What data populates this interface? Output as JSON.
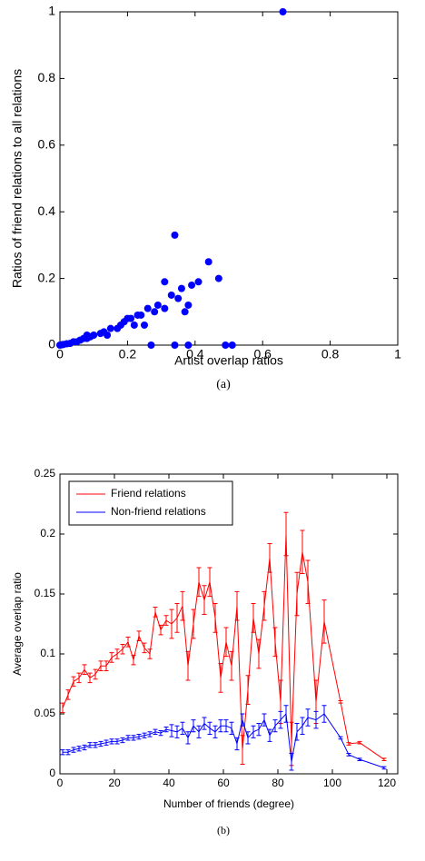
{
  "chart_data": [
    {
      "type": "scatter",
      "xlabel": "Artist overlap ratios",
      "ylabel": "Ratios of friend relations to all relations",
      "caption": "(a)",
      "xlim": [
        0,
        1
      ],
      "ylim": [
        0,
        1
      ],
      "xticks": [
        0,
        0.2,
        0.4,
        0.6,
        0.8,
        1
      ],
      "yticks": [
        0,
        0.2,
        0.4,
        0.6,
        0.8,
        1
      ],
      "color": "#0000ff",
      "x": [
        0.66,
        0.34,
        0.44,
        0.31,
        0.41,
        0.39,
        0.47,
        0.36,
        0.33,
        0.35,
        0.29,
        0.31,
        0.28,
        0.38,
        0.37,
        0.26,
        0.24,
        0.23,
        0.21,
        0.2,
        0.19,
        0.22,
        0.18,
        0.25,
        0.17,
        0.15,
        0.13,
        0.14,
        0.12,
        0.1,
        0.09,
        0.08,
        0.07,
        0.06,
        0.05,
        0.04,
        0.03,
        0.02,
        0.01,
        0.005,
        0,
        0.27,
        0.34,
        0.38,
        0.49,
        0.51,
        0.08
      ],
      "values": [
        1,
        0.33,
        0.25,
        0.19,
        0.19,
        0.18,
        0.2,
        0.17,
        0.15,
        0.14,
        0.12,
        0.11,
        0.1,
        0.12,
        0.1,
        0.11,
        0.09,
        0.09,
        0.08,
        0.08,
        0.07,
        0.06,
        0.06,
        0.06,
        0.05,
        0.05,
        0.04,
        0.03,
        0.035,
        0.03,
        0.025,
        0.02,
        0.02,
        0.015,
        0.01,
        0.01,
        0.005,
        0.004,
        0.002,
        0.001,
        0,
        0,
        0,
        0,
        0,
        0,
        0.03
      ]
    },
    {
      "type": "line",
      "xlabel": "Number of friends (degree)",
      "ylabel": "Average overlap ratio",
      "caption": "(b)",
      "xlim": [
        0,
        124
      ],
      "ylim": [
        0,
        0.25
      ],
      "xticks": [
        0,
        20,
        40,
        60,
        80,
        100,
        120
      ],
      "yticks": [
        0,
        0.05,
        0.1,
        0.15,
        0.2,
        0.25
      ],
      "legend": "top-left",
      "x": [
        1,
        3,
        5,
        7,
        9,
        11,
        13,
        15,
        17,
        19,
        21,
        23,
        25,
        27,
        29,
        31,
        33,
        35,
        37,
        39,
        41,
        43,
        45,
        47,
        49,
        51,
        53,
        55,
        57,
        59,
        61,
        63,
        65,
        67,
        69,
        71,
        73,
        75,
        77,
        79,
        81,
        83,
        85,
        87,
        89,
        91,
        94,
        97,
        103,
        106,
        110,
        119
      ],
      "series": [
        {
          "name": "Friend relations",
          "color": "#ff0000",
          "values": [
            0.055,
            0.066,
            0.077,
            0.08,
            0.087,
            0.08,
            0.083,
            0.09,
            0.09,
            0.097,
            0.1,
            0.104,
            0.11,
            0.095,
            0.115,
            0.105,
            0.1,
            0.135,
            0.12,
            0.128,
            0.125,
            0.13,
            0.14,
            0.09,
            0.125,
            0.16,
            0.145,
            0.16,
            0.13,
            0.08,
            0.11,
            0.09,
            0.14,
            0.02,
            0.07,
            0.13,
            0.1,
            0.14,
            0.18,
            0.11,
            0.06,
            0.2,
            0.025,
            0.15,
            0.185,
            0.16,
            0.06,
            0.127,
            0.06,
            0.025,
            0.026,
            0.012
          ],
          "errors": [
            0.004,
            0.004,
            0.004,
            0.004,
            0.004,
            0.004,
            0.004,
            0.004,
            0.004,
            0.004,
            0.004,
            0.004,
            0.004,
            0.004,
            0.004,
            0.004,
            0.004,
            0.004,
            0.004,
            0.004,
            0.012,
            0.012,
            0.012,
            0.012,
            0.012,
            0.012,
            0.012,
            0.012,
            0.012,
            0.012,
            0.012,
            0.012,
            0.012,
            0.012,
            0.012,
            0.012,
            0.012,
            0.012,
            0.012,
            0.012,
            0.018,
            0.018,
            0.018,
            0.018,
            0.018,
            0.018,
            0.018,
            0.018,
            0.001,
            0.001,
            0.001,
            0.001
          ]
        },
        {
          "name": "Non-friend relations",
          "color": "#0000ff",
          "values": [
            0.018,
            0.018,
            0.02,
            0.021,
            0.022,
            0.024,
            0.024,
            0.025,
            0.026,
            0.027,
            0.027,
            0.028,
            0.03,
            0.03,
            0.031,
            0.032,
            0.033,
            0.035,
            0.034,
            0.037,
            0.036,
            0.035,
            0.038,
            0.03,
            0.04,
            0.035,
            0.042,
            0.038,
            0.035,
            0.04,
            0.04,
            0.038,
            0.025,
            0.045,
            0.03,
            0.035,
            0.037,
            0.045,
            0.032,
            0.04,
            0.045,
            0.05,
            0.01,
            0.035,
            0.04,
            0.047,
            0.045,
            0.05,
            0.03,
            0.016,
            0.012,
            0.005
          ],
          "errors": [
            0.002,
            0.002,
            0.002,
            0.002,
            0.002,
            0.002,
            0.002,
            0.002,
            0.002,
            0.002,
            0.002,
            0.002,
            0.002,
            0.002,
            0.002,
            0.002,
            0.002,
            0.002,
            0.002,
            0.002,
            0.005,
            0.005,
            0.005,
            0.005,
            0.005,
            0.005,
            0.005,
            0.005,
            0.005,
            0.005,
            0.005,
            0.005,
            0.005,
            0.005,
            0.005,
            0.005,
            0.005,
            0.005,
            0.005,
            0.005,
            0.007,
            0.007,
            0.007,
            0.007,
            0.007,
            0.007,
            0.007,
            0.007,
            0.001,
            0.001,
            0.001,
            0.001
          ]
        }
      ]
    }
  ]
}
